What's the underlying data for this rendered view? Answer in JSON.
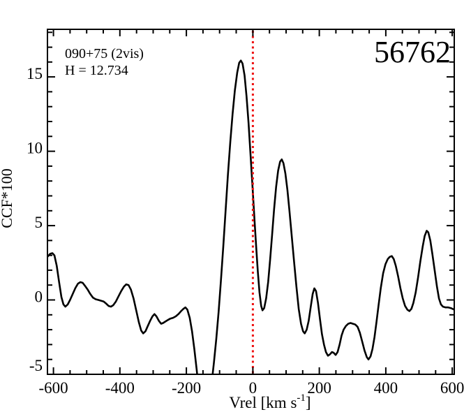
{
  "figure": {
    "id_label": "56762",
    "annotation_line1": "090+75 (2vis)",
    "annotation_line2": "H = 12.734",
    "background": "#ffffff",
    "frame_color": "#000000"
  },
  "chart_data": {
    "type": "line",
    "title": "",
    "xlabel": "Vrel [km s^-1]",
    "xlabel_parts": {
      "main": "Vrel [km s",
      "sup": "-1",
      "close": "]"
    },
    "ylabel": "CCF*100",
    "xlim": [
      -618,
      606
    ],
    "ylim": [
      -5,
      18.2
    ],
    "x_major_ticks": [
      -600,
      -400,
      -200,
      0,
      200,
      400,
      600
    ],
    "x_major_tick_labels": [
      "-600",
      "-400",
      "-200",
      "0",
      "200",
      "400",
      "600"
    ],
    "x_minor_step": 50,
    "y_major_ticks": [
      -5,
      0,
      5,
      10,
      15
    ],
    "y_major_tick_labels": [
      "-5",
      "0",
      "5",
      "10",
      "15"
    ],
    "y_minor_step": 1,
    "grid": false,
    "legend": "none",
    "line_color": "#000000",
    "reference_line": {
      "x": 0,
      "color": "#ee1111",
      "style": "dotted"
    },
    "series": [
      {
        "name": "CCF",
        "points": [
          [
            -618,
            2.9
          ],
          [
            -610,
            3.1
          ],
          [
            -603,
            3.15
          ],
          [
            -597,
            3.0
          ],
          [
            -590,
            2.3
          ],
          [
            -583,
            1.2
          ],
          [
            -576,
            0.2
          ],
          [
            -570,
            -0.3
          ],
          [
            -564,
            -0.45
          ],
          [
            -557,
            -0.3
          ],
          [
            -550,
            0.0
          ],
          [
            -542,
            0.4
          ],
          [
            -534,
            0.8
          ],
          [
            -526,
            1.1
          ],
          [
            -519,
            1.2
          ],
          [
            -512,
            1.15
          ],
          [
            -505,
            0.95
          ],
          [
            -497,
            0.7
          ],
          [
            -489,
            0.4
          ],
          [
            -481,
            0.15
          ],
          [
            -473,
            0.05
          ],
          [
            -465,
            0.0
          ],
          [
            -457,
            -0.05
          ],
          [
            -449,
            -0.1
          ],
          [
            -441,
            -0.25
          ],
          [
            -434,
            -0.4
          ],
          [
            -427,
            -0.45
          ],
          [
            -420,
            -0.35
          ],
          [
            -412,
            -0.1
          ],
          [
            -404,
            0.25
          ],
          [
            -396,
            0.6
          ],
          [
            -388,
            0.9
          ],
          [
            -381,
            1.05
          ],
          [
            -374,
            1.0
          ],
          [
            -367,
            0.7
          ],
          [
            -359,
            0.1
          ],
          [
            -351,
            -0.7
          ],
          [
            -343,
            -1.5
          ],
          [
            -336,
            -2.05
          ],
          [
            -330,
            -2.25
          ],
          [
            -323,
            -2.1
          ],
          [
            -316,
            -1.75
          ],
          [
            -309,
            -1.4
          ],
          [
            -302,
            -1.1
          ],
          [
            -296,
            -0.95
          ],
          [
            -290,
            -1.1
          ],
          [
            -283,
            -1.4
          ],
          [
            -276,
            -1.6
          ],
          [
            -270,
            -1.55
          ],
          [
            -263,
            -1.45
          ],
          [
            -256,
            -1.35
          ],
          [
            -248,
            -1.25
          ],
          [
            -240,
            -1.2
          ],
          [
            -232,
            -1.1
          ],
          [
            -224,
            -0.95
          ],
          [
            -216,
            -0.75
          ],
          [
            -209,
            -0.6
          ],
          [
            -203,
            -0.5
          ],
          [
            -197,
            -0.65
          ],
          [
            -190,
            -1.2
          ],
          [
            -183,
            -2.1
          ],
          [
            -176,
            -3.3
          ],
          [
            -169,
            -4.7
          ],
          [
            -163,
            -6.0
          ],
          [
            -155,
            -7.2
          ],
          [
            -147,
            -7.8
          ],
          [
            -139,
            -7.6
          ],
          [
            -131,
            -6.8
          ],
          [
            -124,
            -5.6
          ],
          [
            -117,
            -4.2
          ],
          [
            -110,
            -2.6
          ],
          [
            -103,
            -0.8
          ],
          [
            -96,
            1.3
          ],
          [
            -89,
            3.6
          ],
          [
            -82,
            6.0
          ],
          [
            -75,
            8.4
          ],
          [
            -68,
            10.6
          ],
          [
            -61,
            12.5
          ],
          [
            -54,
            14.1
          ],
          [
            -47,
            15.3
          ],
          [
            -41,
            15.95
          ],
          [
            -36,
            16.1
          ],
          [
            -31,
            15.9
          ],
          [
            -25,
            15.1
          ],
          [
            -19,
            13.7
          ],
          [
            -13,
            11.9
          ],
          [
            -7,
            9.8
          ],
          [
            -1,
            7.6
          ],
          [
            5,
            5.4
          ],
          [
            10,
            3.6
          ],
          [
            15,
            1.9
          ],
          [
            20,
            0.5
          ],
          [
            25,
            -0.4
          ],
          [
            29,
            -0.7
          ],
          [
            34,
            -0.55
          ],
          [
            40,
            0.1
          ],
          [
            46,
            1.2
          ],
          [
            52,
            2.7
          ],
          [
            58,
            4.4
          ],
          [
            64,
            6.1
          ],
          [
            70,
            7.6
          ],
          [
            76,
            8.7
          ],
          [
            82,
            9.3
          ],
          [
            87,
            9.45
          ],
          [
            92,
            9.2
          ],
          [
            98,
            8.5
          ],
          [
            104,
            7.4
          ],
          [
            110,
            6.0
          ],
          [
            117,
            4.3
          ],
          [
            124,
            2.6
          ],
          [
            131,
            0.9
          ],
          [
            138,
            -0.6
          ],
          [
            145,
            -1.6
          ],
          [
            151,
            -2.1
          ],
          [
            156,
            -2.25
          ],
          [
            162,
            -2.0
          ],
          [
            168,
            -1.4
          ],
          [
            174,
            -0.5
          ],
          [
            180,
            0.4
          ],
          [
            185,
            0.78
          ],
          [
            190,
            0.6
          ],
          [
            196,
            -0.2
          ],
          [
            202,
            -1.3
          ],
          [
            208,
            -2.3
          ],
          [
            214,
            -3.0
          ],
          [
            220,
            -3.5
          ],
          [
            226,
            -3.75
          ],
          [
            232,
            -3.65
          ],
          [
            238,
            -3.5
          ],
          [
            243,
            -3.55
          ],
          [
            249,
            -3.7
          ],
          [
            255,
            -3.5
          ],
          [
            261,
            -3.0
          ],
          [
            267,
            -2.4
          ],
          [
            273,
            -2.0
          ],
          [
            280,
            -1.75
          ],
          [
            287,
            -1.6
          ],
          [
            294,
            -1.55
          ],
          [
            301,
            -1.6
          ],
          [
            308,
            -1.65
          ],
          [
            315,
            -1.8
          ],
          [
            322,
            -2.2
          ],
          [
            329,
            -2.8
          ],
          [
            336,
            -3.4
          ],
          [
            343,
            -3.85
          ],
          [
            348,
            -4.0
          ],
          [
            354,
            -3.8
          ],
          [
            360,
            -3.3
          ],
          [
            366,
            -2.5
          ],
          [
            372,
            -1.5
          ],
          [
            378,
            -0.4
          ],
          [
            385,
            0.8
          ],
          [
            392,
            1.8
          ],
          [
            399,
            2.4
          ],
          [
            406,
            2.75
          ],
          [
            412,
            2.9
          ],
          [
            418,
            2.95
          ],
          [
            424,
            2.75
          ],
          [
            430,
            2.3
          ],
          [
            437,
            1.6
          ],
          [
            444,
            0.8
          ],
          [
            451,
            0.1
          ],
          [
            458,
            -0.4
          ],
          [
            465,
            -0.65
          ],
          [
            471,
            -0.75
          ],
          [
            477,
            -0.6
          ],
          [
            483,
            -0.2
          ],
          [
            490,
            0.5
          ],
          [
            497,
            1.5
          ],
          [
            504,
            2.6
          ],
          [
            511,
            3.6
          ],
          [
            517,
            4.3
          ],
          [
            523,
            4.65
          ],
          [
            528,
            4.55
          ],
          [
            534,
            4.0
          ],
          [
            540,
            3.1
          ],
          [
            547,
            2.0
          ],
          [
            554,
            0.9
          ],
          [
            560,
            0.1
          ],
          [
            566,
            -0.3
          ],
          [
            572,
            -0.45
          ],
          [
            580,
            -0.5
          ],
          [
            588,
            -0.5
          ],
          [
            596,
            -0.55
          ],
          [
            606,
            -0.65
          ]
        ]
      }
    ]
  }
}
